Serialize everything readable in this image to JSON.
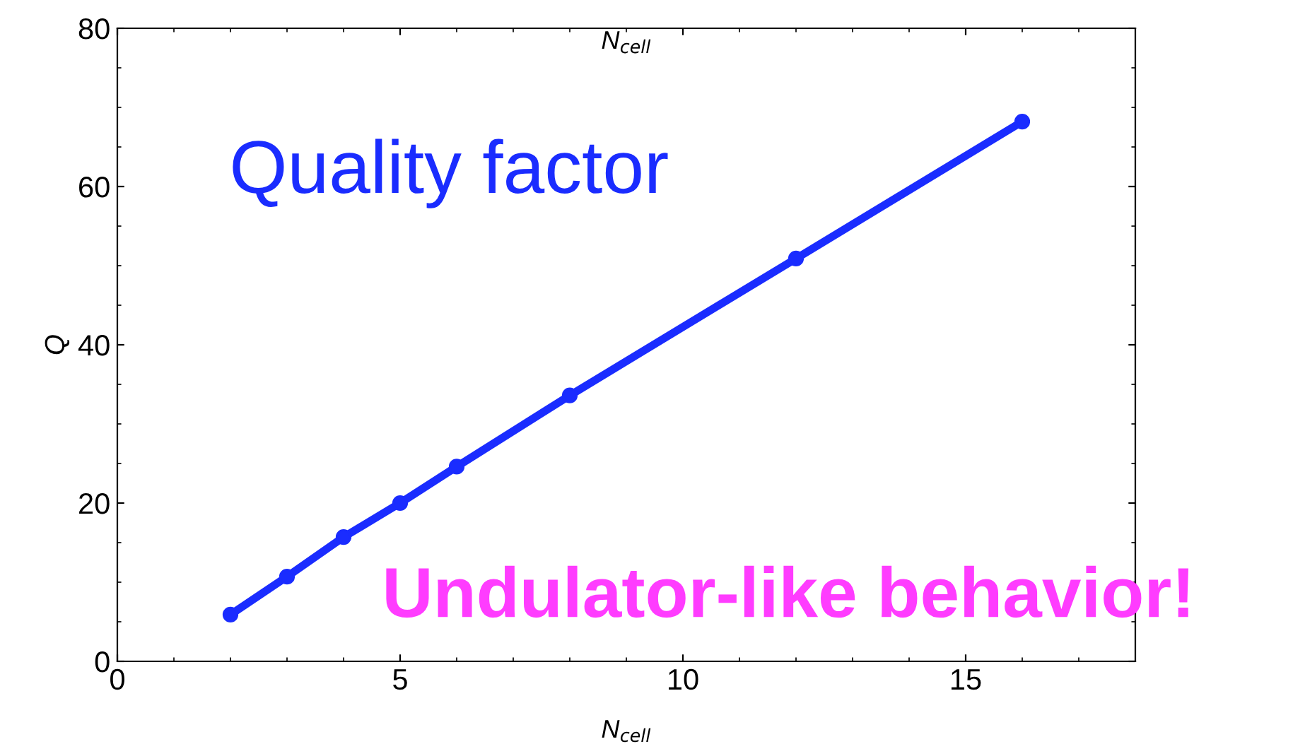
{
  "chart_data": {
    "type": "line",
    "xlabel": "N$_{cell}$",
    "x2label": "N$_{cell}$",
    "ylabel": "Q",
    "x": [
      2,
      3,
      4,
      5,
      6,
      8,
      12,
      16
    ],
    "series": [
      {
        "color": "#1a2cff",
        "values": [
          5.9,
          10.7,
          15.7,
          20.0,
          24.6,
          33.6,
          50.9,
          68.2
        ]
      }
    ],
    "xlim": [
      0,
      18
    ],
    "xticks": [
      0,
      5,
      10,
      15
    ],
    "ylim": [
      0,
      80
    ],
    "yticks": [
      0,
      20,
      40,
      60,
      80
    ],
    "marker": "circle",
    "line_style": "solid",
    "grid": false,
    "legend": false,
    "annotations": [
      "Quality factor",
      "Undulator-like behavior!"
    ]
  }
}
